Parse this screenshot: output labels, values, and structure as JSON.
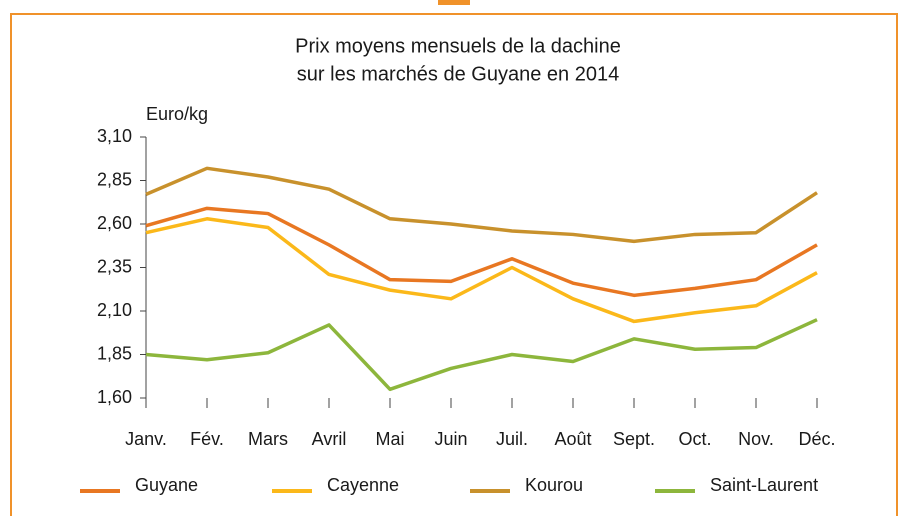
{
  "chart_data": {
    "type": "line",
    "title": [
      "Prix moyens mensuels de la dachine",
      "sur les marchés de Guyane en 2014"
    ],
    "y_label": "Euro/kg",
    "categories": [
      "Janv.",
      "Fév.",
      "Mars",
      "Avril",
      "Mai",
      "Juin",
      "Juil.",
      "Août",
      "Sept.",
      "Oct.",
      "Nov.",
      "Déc."
    ],
    "ylim": [
      1.6,
      3.1
    ],
    "yticks": [
      {
        "value": 1.6,
        "label": "1,60"
      },
      {
        "value": 1.85,
        "label": "1,85"
      },
      {
        "value": 2.1,
        "label": "2,10"
      },
      {
        "value": 2.35,
        "label": "2,35"
      },
      {
        "value": 2.6,
        "label": "2,60"
      },
      {
        "value": 2.85,
        "label": "2,85"
      },
      {
        "value": 3.1,
        "label": "3,10"
      }
    ],
    "grid": false,
    "legend": "bottom",
    "series": [
      {
        "name": "Guyane",
        "color": "#e87722",
        "values": [
          2.59,
          2.69,
          2.66,
          2.48,
          2.28,
          2.27,
          2.4,
          2.26,
          2.19,
          2.23,
          2.28,
          2.48
        ]
      },
      {
        "name": "Cayenne",
        "color": "#fbb81a",
        "values": [
          2.55,
          2.63,
          2.58,
          2.31,
          2.22,
          2.17,
          2.35,
          2.17,
          2.04,
          2.09,
          2.13,
          2.32
        ]
      },
      {
        "name": "Kourou",
        "color": "#c8912c",
        "values": [
          2.77,
          2.92,
          2.87,
          2.8,
          2.63,
          2.6,
          2.56,
          2.54,
          2.5,
          2.54,
          2.55,
          2.78
        ]
      },
      {
        "name": "Saint-Laurent",
        "color": "#8db63c",
        "values": [
          1.85,
          1.82,
          1.86,
          2.02,
          1.65,
          1.77,
          1.85,
          1.81,
          1.94,
          1.88,
          1.89,
          2.05
        ]
      }
    ]
  }
}
